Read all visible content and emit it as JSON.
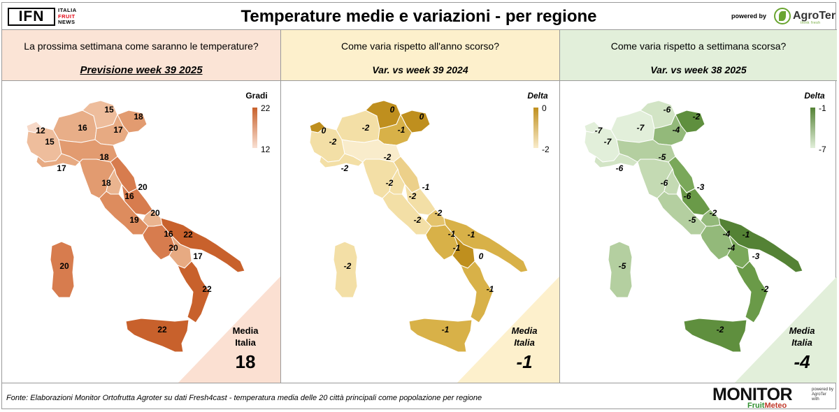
{
  "header": {
    "logo_ifn": {
      "main": "IFN",
      "lines": [
        "ITALIA",
        "FRUIT",
        "NEWS"
      ]
    },
    "title": "Temperature medie e variazioni - per regione",
    "powered_by": "powered by",
    "agroter": {
      "name": "AgroTer",
      "tagline": "think fresh"
    }
  },
  "panels": [
    {
      "question": "La prossima settimana come saranno le temperature?",
      "subtitle": "Previsione week 39 2025",
      "legend": {
        "title": "Gradi",
        "max": "22",
        "min": "12",
        "colors": [
          "#c8612c",
          "#f9e0d3"
        ]
      },
      "media": {
        "label_line1": "Media",
        "label_line2": "Italia",
        "value": "18"
      },
      "regions": [
        {
          "region": "Valle d'Aosta",
          "value": "12",
          "color": "#f6d8c7"
        },
        {
          "region": "Piemonte",
          "value": "15",
          "color": "#eebd9c"
        },
        {
          "region": "Lombardia",
          "value": "16",
          "color": "#e8ae88"
        },
        {
          "region": "Trentino-Alto Adige",
          "value": "15",
          "color": "#eebd9c"
        },
        {
          "region": "Friuli-Venezia Giulia",
          "value": "18",
          "color": "#e29b70"
        },
        {
          "region": "Veneto",
          "value": "17",
          "color": "#e7aa82"
        },
        {
          "region": "Liguria",
          "value": "17",
          "color": "#e7aa82"
        },
        {
          "region": "Emilia-Romagna",
          "value": "18",
          "color": "#e29b70"
        },
        {
          "region": "Toscana",
          "value": "18",
          "color": "#e29b70"
        },
        {
          "region": "Marche",
          "value": "20",
          "color": "#d77c4e"
        },
        {
          "region": "Umbria",
          "value": "16",
          "color": "#eab48f"
        },
        {
          "region": "Lazio",
          "value": "19",
          "color": "#dd8c5e"
        },
        {
          "region": "Abruzzo",
          "value": "20",
          "color": "#d77c4e"
        },
        {
          "region": "Molise",
          "value": "16",
          "color": "#eab48f"
        },
        {
          "region": "Campania",
          "value": "20",
          "color": "#d77c4e"
        },
        {
          "region": "Puglia",
          "value": "22",
          "color": "#c8612c"
        },
        {
          "region": "Basilicata",
          "value": "17",
          "color": "#e7aa82"
        },
        {
          "region": "Calabria",
          "value": "22",
          "color": "#c8612c"
        },
        {
          "region": "Sicilia",
          "value": "22",
          "color": "#c8612c"
        },
        {
          "region": "Sardegna",
          "value": "20",
          "color": "#d77c4e"
        }
      ]
    },
    {
      "question": "Come varia rispetto all'anno scorso?",
      "subtitle": "Var. vs week 39 2024",
      "legend": {
        "title": "Delta",
        "max": "0",
        "min": "-2",
        "colors": [
          "#bf8f1e",
          "#f9eccb"
        ]
      },
      "media": {
        "label_line1": "Media",
        "label_line2": "Italia",
        "value": "-1"
      },
      "regions": [
        {
          "region": "Valle d'Aosta",
          "value": "0",
          "color": "#bf8f1e"
        },
        {
          "region": "Piemonte",
          "value": "-2",
          "color": "#f3dfa6"
        },
        {
          "region": "Lombardia",
          "value": "-2",
          "color": "#f3dfa6"
        },
        {
          "region": "Trentino-Alto Adige",
          "value": "0",
          "color": "#bf8f1e"
        },
        {
          "region": "Friuli-Venezia Giulia",
          "value": "0",
          "color": "#bf8f1e"
        },
        {
          "region": "Veneto",
          "value": "-1",
          "color": "#d8b148"
        },
        {
          "region": "Liguria",
          "value": "-2",
          "color": "#f3dfa6"
        },
        {
          "region": "Emilia-Romagna",
          "value": "-2",
          "color": "#f9eccb"
        },
        {
          "region": "Toscana",
          "value": "-2",
          "color": "#f3dfa6"
        },
        {
          "region": "Marche",
          "value": "-1",
          "color": "#ecd08a"
        },
        {
          "region": "Umbria",
          "value": "-2",
          "color": "#f3dfa6"
        },
        {
          "region": "Lazio",
          "value": "-2",
          "color": "#f3dfa6"
        },
        {
          "region": "Abruzzo",
          "value": "-2",
          "color": "#f3dfa6"
        },
        {
          "region": "Molise",
          "value": "-1",
          "color": "#e4c36c"
        },
        {
          "region": "Campania",
          "value": "-1",
          "color": "#d8b148"
        },
        {
          "region": "Puglia",
          "value": "-1",
          "color": "#d8b148"
        },
        {
          "region": "Basilicata",
          "value": "0",
          "color": "#bf8f1e"
        },
        {
          "region": "Calabria",
          "value": "-1",
          "color": "#d8b148"
        },
        {
          "region": "Sicilia",
          "value": "-1",
          "color": "#d8b148"
        },
        {
          "region": "Sardegna",
          "value": "-2",
          "color": "#f3dfa6"
        }
      ]
    },
    {
      "question": "Come varia rispetto a settimana scorsa?",
      "subtitle": "Var. vs week 38 2025",
      "legend": {
        "title": "Delta",
        "max": "-1",
        "min": "-7",
        "colors": [
          "#548235",
          "#e2efda"
        ]
      },
      "media": {
        "label_line1": "Media",
        "label_line2": "Italia",
        "value": "-4"
      },
      "regions": [
        {
          "region": "Valle d'Aosta",
          "value": "-7",
          "color": "#e2efda"
        },
        {
          "region": "Piemonte",
          "value": "-7",
          "color": "#e2efda"
        },
        {
          "region": "Lombardia",
          "value": "-7",
          "color": "#e2efda"
        },
        {
          "region": "Trentino-Alto Adige",
          "value": "-6",
          "color": "#d2e4c5"
        },
        {
          "region": "Friuli-Venezia Giulia",
          "value": "-2",
          "color": "#5f8f3e"
        },
        {
          "region": "Veneto",
          "value": "-4",
          "color": "#93b97a"
        },
        {
          "region": "Liguria",
          "value": "-6",
          "color": "#d2e4c5"
        },
        {
          "region": "Emilia-Romagna",
          "value": "-5",
          "color": "#b4cfa0"
        },
        {
          "region": "Toscana",
          "value": "-6",
          "color": "#c4dab3"
        },
        {
          "region": "Marche",
          "value": "-3",
          "color": "#7aa85a"
        },
        {
          "region": "Umbria",
          "value": "-6",
          "color": "#c4dab3"
        },
        {
          "region": "Lazio",
          "value": "-5",
          "color": "#b4cfa0"
        },
        {
          "region": "Abruzzo",
          "value": "-2",
          "color": "#6a9a48"
        },
        {
          "region": "Molise",
          "value": "-4",
          "color": "#93b97a"
        },
        {
          "region": "Campania",
          "value": "-4",
          "color": "#93b97a"
        },
        {
          "region": "Puglia",
          "value": "-1",
          "color": "#548235"
        },
        {
          "region": "Basilicata",
          "value": "-3",
          "color": "#7aa85a"
        },
        {
          "region": "Calabria",
          "value": "-2",
          "color": "#6a9a48"
        },
        {
          "region": "Sicilia",
          "value": "-2",
          "color": "#5f8f3e"
        },
        {
          "region": "Sardegna",
          "value": "-5",
          "color": "#b4cfa0"
        }
      ]
    }
  ],
  "footer": {
    "source": "Fonte: Elaborazioni Monitor Ortofrutta Agroter su dati Fresh4cast - temperatura media delle 20 città principali come popolazione per regione",
    "monitor_name": "MONITOR",
    "monitor_sub_a": "Fruit",
    "monitor_sub_b": "Meteo",
    "side_lines": [
      "powered by",
      "AgroTer",
      "with"
    ]
  }
}
